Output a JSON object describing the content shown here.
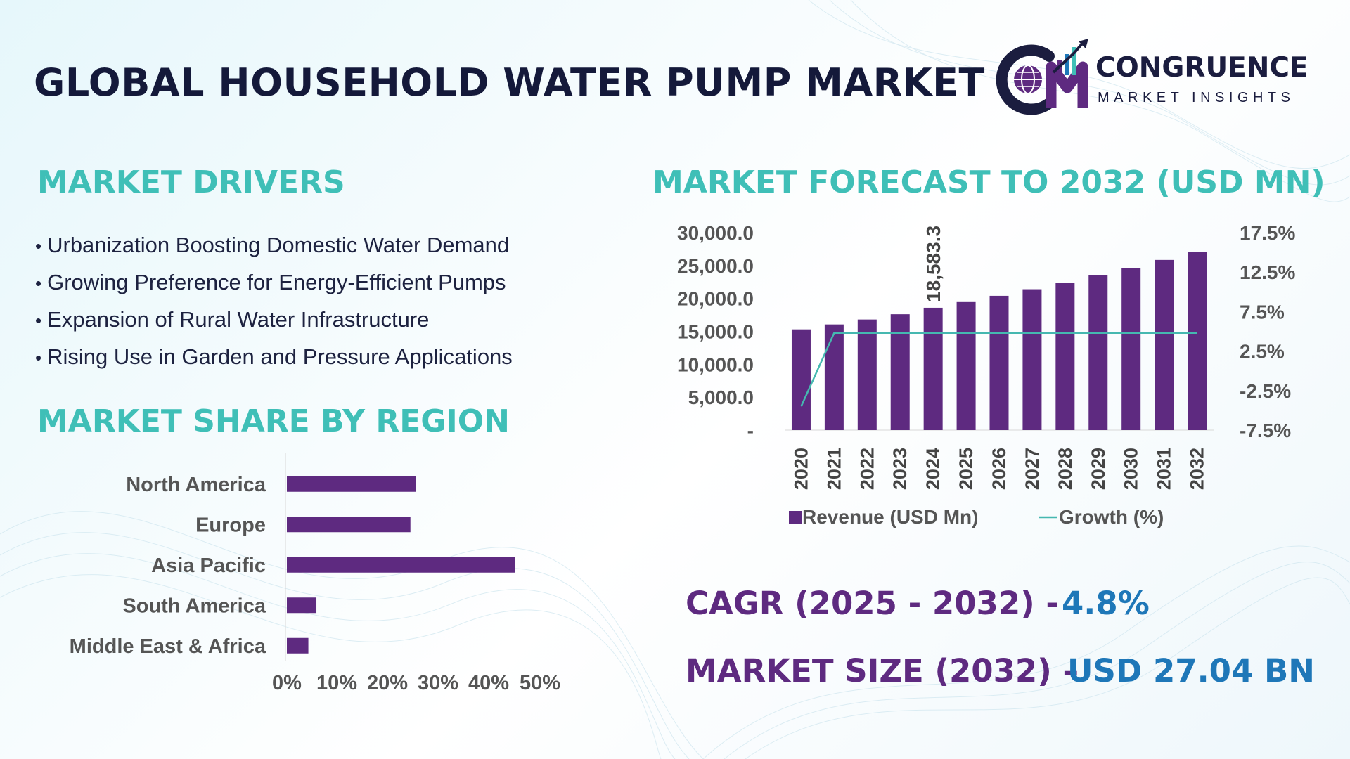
{
  "header": {
    "title": "GLOBAL HOUSEHOLD WATER PUMP MARKET",
    "logo_word": "CONGRUENCE",
    "logo_sub": "MARKET INSIGHTS",
    "logo_icon": "cm-monogram-globe-chart-icon"
  },
  "drivers": {
    "title": "MARKET DRIVERS",
    "items": [
      "Urbanization Boosting Domestic Water Demand",
      "Growing Preference for Energy-Efficient Pumps",
      "Expansion of Rural Water Infrastructure",
      "Rising Use in Garden and Pressure Applications"
    ]
  },
  "region": {
    "title": "MARKET SHARE BY REGION"
  },
  "forecast": {
    "title": "MARKET FORECAST TO 2032 (USD MN)"
  },
  "kpis": {
    "cagr_label": "CAGR (2025 - 2032) -",
    "cagr_value": "4.8%",
    "size_label": "MARKET SIZE (2032) –",
    "size_value": "USD 27.04 BN"
  },
  "colors": {
    "bar": "#5e2a80",
    "line": "#45b8b0",
    "section_title": "#3fbfb7",
    "title": "#14193a",
    "kpi_label": "#5e2a80",
    "kpi_value": "#1e77b8"
  },
  "chart_data": [
    {
      "type": "bar",
      "orientation": "horizontal",
      "categories": [
        "North America",
        "Europe",
        "Asia Pacific",
        "South America",
        "Middle East & Africa"
      ],
      "values": [
        24,
        23,
        42.5,
        5.5,
        4
      ],
      "xlim": [
        0,
        50
      ],
      "xticks": [
        "0%",
        "10%",
        "20%",
        "30%",
        "40%",
        "50%"
      ]
    },
    {
      "type": "bar",
      "categories": [
        "2020",
        "2021",
        "2022",
        "2023",
        "2024",
        "2025",
        "2026",
        "2027",
        "2028",
        "2029",
        "2030",
        "2031",
        "2032"
      ],
      "series": [
        {
          "name": "Revenue (USD Mn)",
          "type": "bar",
          "axis": "left",
          "values": [
            15300,
            16050,
            16800,
            17600,
            18583.3,
            19450,
            20400,
            21400,
            22400,
            23500,
            24650,
            25850,
            27040
          ]
        },
        {
          "name": "Growth (%)",
          "type": "line",
          "axis": "right",
          "values": [
            -4.5,
            4.8,
            4.8,
            4.8,
            4.8,
            4.8,
            4.8,
            4.8,
            4.8,
            4.8,
            4.8,
            4.8,
            4.8
          ]
        }
      ],
      "data_labels": [
        {
          "index": 4,
          "text": "18,583.3"
        }
      ],
      "ylim_left": [
        0,
        30000
      ],
      "yticks_left": [
        "-",
        "5,000.0",
        "10,000.0",
        "15,000.0",
        "20,000.0",
        "25,000.0",
        "30,000.0"
      ],
      "ylim_right": [
        -7.5,
        17.5
      ],
      "yticks_right": [
        "-7.5%",
        "-2.5%",
        "2.5%",
        "7.5%",
        "12.5%",
        "17.5%"
      ],
      "legend": "bottom"
    }
  ]
}
